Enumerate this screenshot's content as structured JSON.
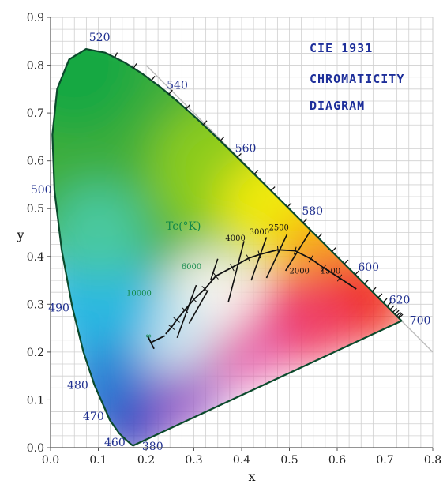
{
  "chart_data": {
    "type": "scatter",
    "title": [
      "CIE 1931",
      "CHROMATICITY",
      "DIAGRAM"
    ],
    "xlabel": "x",
    "ylabel": "y",
    "xlim": [
      0.0,
      0.8
    ],
    "ylim": [
      0.0,
      0.9
    ],
    "grid": true,
    "x_ticks": [
      "0.0",
      "0.1",
      "0.2",
      "0.3",
      "0.4",
      "0.5",
      "0.6",
      "0.7",
      "0.8"
    ],
    "y_ticks": [
      "0.0",
      "0.1",
      "0.2",
      "0.3",
      "0.4",
      "0.5",
      "0.6",
      "0.7",
      "0.8",
      "0.9"
    ],
    "spectral_locus": [
      {
        "x": 0.1741,
        "y": 0.005,
        "label": "380"
      },
      {
        "x": 0.1714,
        "y": 0.005
      },
      {
        "x": 0.1689,
        "y": 0.0069
      },
      {
        "x": 0.1644,
        "y": 0.0109,
        "label": "460"
      },
      {
        "x": 0.1566,
        "y": 0.0177
      },
      {
        "x": 0.144,
        "y": 0.0297
      },
      {
        "x": 0.1241,
        "y": 0.0578,
        "label": "470"
      },
      {
        "x": 0.0913,
        "y": 0.1327,
        "label": "480"
      },
      {
        "x": 0.0687,
        "y": 0.2007
      },
      {
        "x": 0.0454,
        "y": 0.295,
        "label": "490"
      },
      {
        "x": 0.0235,
        "y": 0.4127
      },
      {
        "x": 0.0082,
        "y": 0.5384,
        "label": "500"
      },
      {
        "x": 0.0039,
        "y": 0.6548
      },
      {
        "x": 0.0139,
        "y": 0.7502
      },
      {
        "x": 0.0389,
        "y": 0.812
      },
      {
        "x": 0.0743,
        "y": 0.8338,
        "label": "520"
      },
      {
        "x": 0.1142,
        "y": 0.8262
      },
      {
        "x": 0.1547,
        "y": 0.8059
      },
      {
        "x": 0.1929,
        "y": 0.7816
      },
      {
        "x": 0.2296,
        "y": 0.7543,
        "label": "540"
      },
      {
        "x": 0.2658,
        "y": 0.7243
      },
      {
        "x": 0.3016,
        "y": 0.6923
      },
      {
        "x": 0.3373,
        "y": 0.6589
      },
      {
        "x": 0.3731,
        "y": 0.6245,
        "label": "560"
      },
      {
        "x": 0.4087,
        "y": 0.5896
      },
      {
        "x": 0.4441,
        "y": 0.5547
      },
      {
        "x": 0.4788,
        "y": 0.5202
      },
      {
        "x": 0.5125,
        "y": 0.4866,
        "label": "580"
      },
      {
        "x": 0.5448,
        "y": 0.4544
      },
      {
        "x": 0.5752,
        "y": 0.4242
      },
      {
        "x": 0.6029,
        "y": 0.3965
      },
      {
        "x": 0.627,
        "y": 0.3725,
        "label": "600"
      },
      {
        "x": 0.6482,
        "y": 0.3514
      },
      {
        "x": 0.6658,
        "y": 0.334
      },
      {
        "x": 0.6801,
        "y": 0.3197
      },
      {
        "x": 0.6915,
        "y": 0.3083,
        "label": "620"
      },
      {
        "x": 0.7006,
        "y": 0.2993
      },
      {
        "x": 0.7079,
        "y": 0.292
      },
      {
        "x": 0.714,
        "y": 0.2859
      },
      {
        "x": 0.719,
        "y": 0.2809
      },
      {
        "x": 0.723,
        "y": 0.277
      },
      {
        "x": 0.726,
        "y": 0.274
      },
      {
        "x": 0.7283,
        "y": 0.2717
      },
      {
        "x": 0.73,
        "y": 0.27
      },
      {
        "x": 0.7347,
        "y": 0.2653,
        "label": "700"
      }
    ],
    "wavelength_labels": [
      {
        "text": "380",
        "x": 0.175,
        "y": 0.005
      },
      {
        "text": "460",
        "x": 0.162,
        "y": 0.013
      },
      {
        "text": "470",
        "x": 0.124,
        "y": 0.058
      },
      {
        "text": "480",
        "x": 0.091,
        "y": 0.133
      },
      {
        "text": "490",
        "x": 0.045,
        "y": 0.295
      },
      {
        "text": "500",
        "x": 0.008,
        "y": 0.538
      },
      {
        "text": "520",
        "x": 0.074,
        "y": 0.834
      },
      {
        "text": "540",
        "x": 0.23,
        "y": 0.754
      },
      {
        "text": "560",
        "x": 0.373,
        "y": 0.625
      },
      {
        "text": "580",
        "x": 0.513,
        "y": 0.487
      },
      {
        "text": "600",
        "x": 0.627,
        "y": 0.373
      },
      {
        "text": "620",
        "x": 0.692,
        "y": 0.308
      },
      {
        "text": "700",
        "x": 0.735,
        "y": 0.265
      }
    ],
    "planckian_locus": [
      {
        "x": 0.241,
        "y": 0.238
      },
      {
        "x": 0.253,
        "y": 0.252
      },
      {
        "x": 0.264,
        "y": 0.267
      },
      {
        "x": 0.281,
        "y": 0.288
      },
      {
        "x": 0.3,
        "y": 0.31
      },
      {
        "x": 0.323,
        "y": 0.332
      },
      {
        "x": 0.346,
        "y": 0.359
      },
      {
        "x": 0.38,
        "y": 0.377
      },
      {
        "x": 0.414,
        "y": 0.396
      },
      {
        "x": 0.437,
        "y": 0.404
      },
      {
        "x": 0.476,
        "y": 0.414
      },
      {
        "x": 0.512,
        "y": 0.412
      },
      {
        "x": 0.545,
        "y": 0.395
      },
      {
        "x": 0.572,
        "y": 0.376
      },
      {
        "x": 0.605,
        "y": 0.355
      },
      {
        "x": 0.64,
        "y": 0.332
      }
    ],
    "infinity_segment": [
      {
        "x": 0.239,
        "y": 0.234
      },
      {
        "x": 0.21,
        "y": 0.22
      }
    ],
    "temperature_axis_label": "Tc(°K)",
    "temperatures": [
      {
        "label": "∞",
        "color": "green",
        "x": 0.205,
        "y": 0.229
      },
      {
        "label": "10000",
        "color": "green",
        "x": 0.185,
        "y": 0.318
      },
      {
        "label": "6000",
        "color": "green",
        "x": 0.295,
        "y": 0.373
      },
      {
        "label": "4000",
        "color": "black",
        "x": 0.387,
        "y": 0.433
      },
      {
        "label": "3000",
        "color": "black",
        "x": 0.437,
        "y": 0.446
      },
      {
        "label": "2500",
        "color": "black",
        "x": 0.478,
        "y": 0.455
      },
      {
        "label": "2000",
        "color": "black",
        "x": 0.521,
        "y": 0.364
      },
      {
        "label": "1500",
        "color": "black",
        "x": 0.586,
        "y": 0.364
      }
    ],
    "isotherm_lines": [
      {
        "x1": 0.265,
        "y1": 0.23,
        "x2": 0.305,
        "y2": 0.34
      },
      {
        "x1": 0.29,
        "y1": 0.26,
        "x2": 0.33,
        "y2": 0.33
      },
      {
        "x1": 0.335,
        "y1": 0.35,
        "x2": 0.35,
        "y2": 0.395
      },
      {
        "x1": 0.372,
        "y1": 0.304,
        "x2": 0.405,
        "y2": 0.432
      },
      {
        "x1": 0.42,
        "y1": 0.35,
        "x2": 0.452,
        "y2": 0.44
      },
      {
        "x1": 0.452,
        "y1": 0.355,
        "x2": 0.495,
        "y2": 0.446
      },
      {
        "x1": 0.492,
        "y1": 0.37,
        "x2": 0.545,
        "y2": 0.455
      }
    ],
    "colors": {
      "outline": "#0b4a2c",
      "grid": "#d0d0d0",
      "title": "#1e2f9a",
      "wavelength_label": "#1f2f8f",
      "temp_green": "#138a4a",
      "locus": "#111111"
    }
  }
}
